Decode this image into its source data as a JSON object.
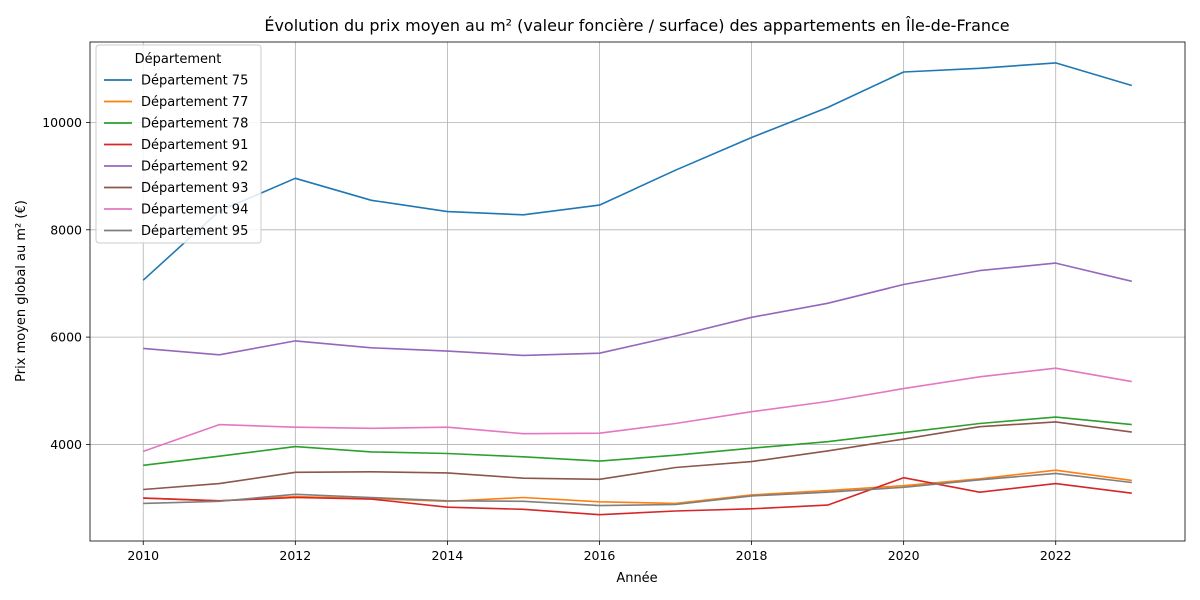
{
  "chart_data": {
    "type": "line",
    "title": "Évolution du prix moyen au m² (valeur foncière / surface) des appartements en Île-de-France",
    "xlabel": "Année",
    "ylabel": "Prix moyen global au m² (€)",
    "xlim": [
      2009.3,
      2023.7
    ],
    "ylim": [
      2200,
      11500
    ],
    "xticks": [
      2010,
      2012,
      2014,
      2016,
      2018,
      2020,
      2022
    ],
    "yticks": [
      4000,
      6000,
      8000,
      10000
    ],
    "grid": true,
    "legend": {
      "title": "Département",
      "placement": "top-left"
    },
    "x": [
      2010,
      2011,
      2012,
      2013,
      2014,
      2015,
      2016,
      2017,
      2018,
      2019,
      2020,
      2021,
      2022,
      2023
    ],
    "series": [
      {
        "name": "Département 75",
        "color": "#1f77b4",
        "values": [
          7060,
          8350,
          8960,
          8550,
          8340,
          8280,
          8460,
          9110,
          9720,
          10280,
          10940,
          11010,
          11110,
          10690
        ]
      },
      {
        "name": "Département 77",
        "color": "#ff7f0e",
        "values": [
          3000,
          2950,
          3030,
          2990,
          2940,
          3010,
          2930,
          2900,
          3060,
          3140,
          3230,
          3360,
          3520,
          3330
        ]
      },
      {
        "name": "Département 78",
        "color": "#2ca02c",
        "values": [
          3610,
          3780,
          3960,
          3860,
          3830,
          3770,
          3690,
          3800,
          3930,
          4050,
          4220,
          4390,
          4510,
          4370
        ]
      },
      {
        "name": "Département 91",
        "color": "#d62728",
        "values": [
          3000,
          2950,
          3010,
          2980,
          2830,
          2790,
          2690,
          2760,
          2800,
          2870,
          3380,
          3110,
          3270,
          3090
        ]
      },
      {
        "name": "Département 92",
        "color": "#9467bd",
        "values": [
          5790,
          5670,
          5930,
          5800,
          5740,
          5660,
          5700,
          6020,
          6370,
          6630,
          6980,
          7240,
          7380,
          7040
        ]
      },
      {
        "name": "Département 93",
        "color": "#8c564b",
        "values": [
          3160,
          3270,
          3480,
          3490,
          3470,
          3370,
          3350,
          3570,
          3680,
          3880,
          4100,
          4330,
          4420,
          4230
        ]
      },
      {
        "name": "Département 94",
        "color": "#e377c2",
        "values": [
          3870,
          4370,
          4320,
          4300,
          4320,
          4200,
          4210,
          4390,
          4610,
          4800,
          5040,
          5260,
          5420,
          5170
        ]
      },
      {
        "name": "Département 95",
        "color": "#7f7f7f",
        "values": [
          2900,
          2940,
          3070,
          3010,
          2950,
          2940,
          2860,
          2880,
          3040,
          3110,
          3200,
          3340,
          3460,
          3290
        ]
      }
    ]
  }
}
